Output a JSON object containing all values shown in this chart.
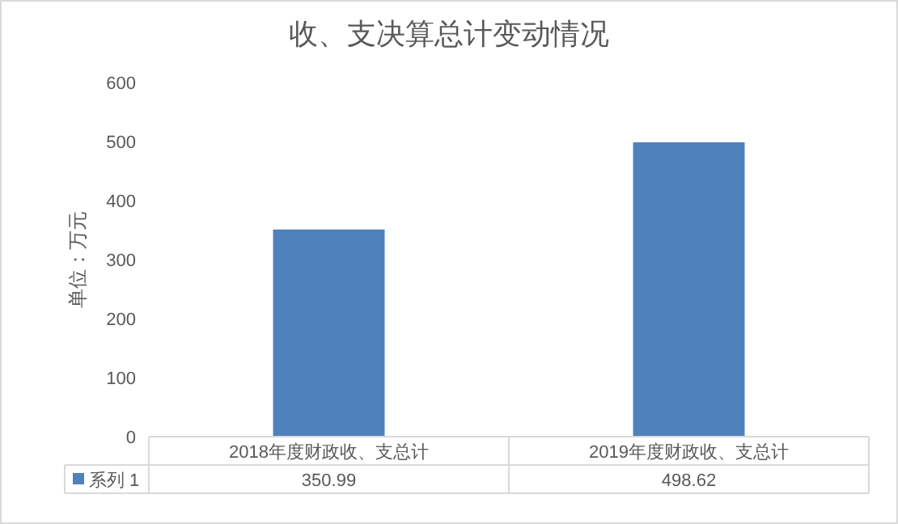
{
  "chart_data": {
    "type": "bar",
    "title": "收、支决算总计变动情况",
    "ylabel": "单位：万元",
    "categories": [
      "2018年度财政收、支总计",
      "2019年度财政收、支总计"
    ],
    "series": [
      {
        "name": "系列 1",
        "color": "#4f81bd",
        "values": [
          350.99,
          498.62
        ]
      }
    ],
    "ylim": [
      0,
      600
    ],
    "yticks": [
      0,
      100,
      200,
      300,
      400,
      500,
      600
    ],
    "grid": false,
    "data_labels": true,
    "legend": "bottom left"
  }
}
